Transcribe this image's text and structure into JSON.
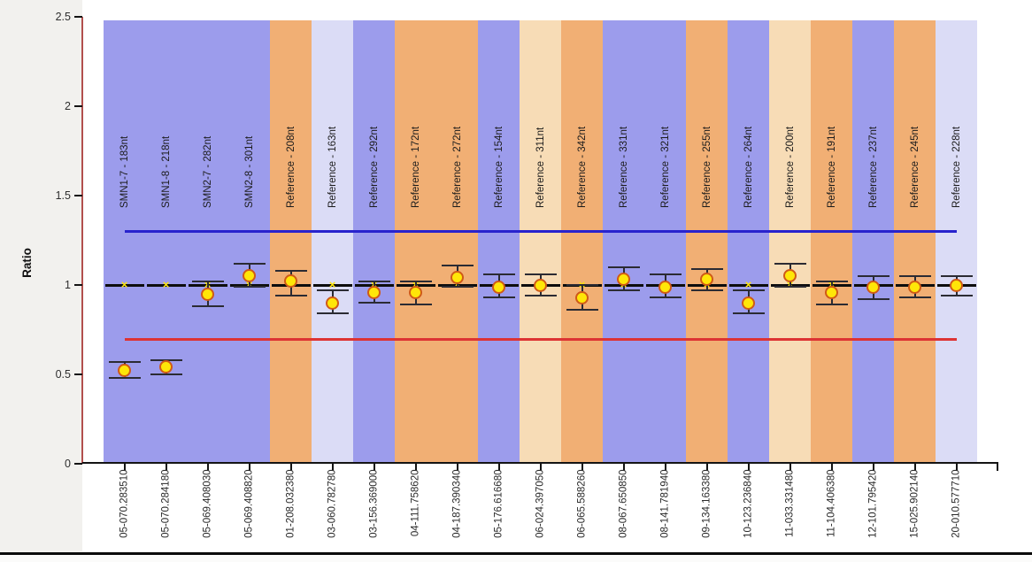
{
  "chart_data": {
    "type": "scatter",
    "title": "",
    "ylabel": "Ratio",
    "xlabel": "",
    "ylim": [
      0,
      2.5
    ],
    "yticks": [
      0,
      0.5,
      1,
      1.5,
      2,
      2.5
    ],
    "grid": false,
    "legend": "none",
    "reference_value": 1.0,
    "thresholds": {
      "upper": 1.3,
      "lower": 0.7
    },
    "columns": [
      {
        "probe": "SMN1-7 - 183nt",
        "sample": "05-070.283510",
        "band": "blue",
        "ratio": 0.52,
        "err_lo": 0.48,
        "err_hi": 0.57
      },
      {
        "probe": "SMN1-8 - 218nt",
        "sample": "05-070.284180",
        "band": "blue",
        "ratio": 0.54,
        "err_lo": 0.5,
        "err_hi": 0.58
      },
      {
        "probe": "SMN2-7 - 282nt",
        "sample": "05-069.408030",
        "band": "blue",
        "ratio": 0.95,
        "err_lo": 0.88,
        "err_hi": 1.02
      },
      {
        "probe": "SMN2-8 - 301nt",
        "sample": "05-069.408820",
        "band": "blue",
        "ratio": 1.05,
        "err_lo": 0.99,
        "err_hi": 1.12
      },
      {
        "probe": "Reference - 208nt",
        "sample": "01-208.032380",
        "band": "orange",
        "ratio": 1.02,
        "err_lo": 0.94,
        "err_hi": 1.08
      },
      {
        "probe": "Reference - 163nt",
        "sample": "03-060.782780",
        "band": "lavender",
        "ratio": 0.9,
        "err_lo": 0.84,
        "err_hi": 0.97
      },
      {
        "probe": "Reference - 292nt",
        "sample": "03-156.369000",
        "band": "blue",
        "ratio": 0.96,
        "err_lo": 0.9,
        "err_hi": 1.02
      },
      {
        "probe": "Reference - 172nt",
        "sample": "04-111.758620",
        "band": "orange",
        "ratio": 0.96,
        "err_lo": 0.89,
        "err_hi": 1.02
      },
      {
        "probe": "Reference - 272nt",
        "sample": "04-187.390340",
        "band": "orange",
        "ratio": 1.04,
        "err_lo": 0.99,
        "err_hi": 1.11
      },
      {
        "probe": "Reference - 154nt",
        "sample": "05-176.616680",
        "band": "blue",
        "ratio": 0.99,
        "err_lo": 0.93,
        "err_hi": 1.06
      },
      {
        "probe": "Reference - 311nt",
        "sample": "06-024.397050",
        "band": "cream",
        "ratio": 1.0,
        "err_lo": 0.94,
        "err_hi": 1.06
      },
      {
        "probe": "Reference - 342nt",
        "sample": "06-065.588260",
        "band": "orange",
        "ratio": 0.93,
        "err_lo": 0.86,
        "err_hi": 1.0
      },
      {
        "probe": "Reference - 331nt",
        "sample": "08-067.650850",
        "band": "blue",
        "ratio": 1.03,
        "err_lo": 0.97,
        "err_hi": 1.1
      },
      {
        "probe": "Reference - 321nt",
        "sample": "08-141.781940",
        "band": "blue",
        "ratio": 0.99,
        "err_lo": 0.93,
        "err_hi": 1.06
      },
      {
        "probe": "Reference - 255nt",
        "sample": "09-134.163380",
        "band": "orange",
        "ratio": 1.03,
        "err_lo": 0.97,
        "err_hi": 1.09
      },
      {
        "probe": "Reference - 264nt",
        "sample": "10-123.236840",
        "band": "blue",
        "ratio": 0.9,
        "err_lo": 0.84,
        "err_hi": 0.97
      },
      {
        "probe": "Reference - 200nt",
        "sample": "11-033.331480",
        "band": "cream",
        "ratio": 1.05,
        "err_lo": 0.99,
        "err_hi": 1.12
      },
      {
        "probe": "Reference - 191nt",
        "sample": "11-104.406380",
        "band": "orange",
        "ratio": 0.96,
        "err_lo": 0.89,
        "err_hi": 1.02
      },
      {
        "probe": "Reference - 237nt",
        "sample": "12-101.795420",
        "band": "blue",
        "ratio": 0.99,
        "err_lo": 0.92,
        "err_hi": 1.05
      },
      {
        "probe": "Reference - 245nt",
        "sample": "15-025.902140",
        "band": "orange",
        "ratio": 0.99,
        "err_lo": 0.93,
        "err_hi": 1.05
      },
      {
        "probe": "Reference - 228nt",
        "sample": "20-010.577710",
        "band": "lavender",
        "ratio": 1.0,
        "err_lo": 0.94,
        "err_hi": 1.05
      }
    ],
    "colors": {
      "band_blue": "#9c9cec",
      "band_orange": "#f1af74",
      "band_lavender": "#dbdcf6",
      "band_cream": "#f7dcb6",
      "threshold_upper": "#2823cd",
      "threshold_lower": "#dd3333",
      "marker_fill": "#ffe608",
      "marker_stroke": "#cf5a17",
      "reference_marker": "#0d0d0d",
      "y_axis_line": "#b2504e"
    }
  }
}
